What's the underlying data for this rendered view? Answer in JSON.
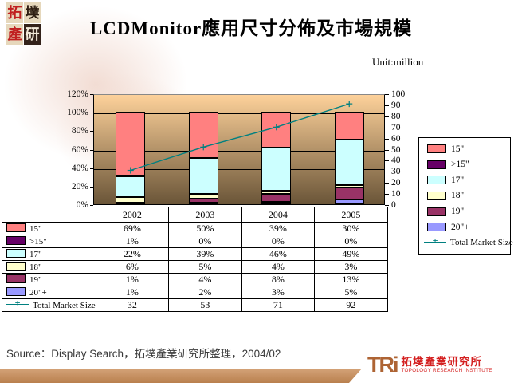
{
  "header": {
    "logo_chars": [
      "拓",
      "墣",
      "產",
      "研"
    ],
    "title": "LCDMonitor應用尺寸分佈及市場規模",
    "unit_label": "Unit:million"
  },
  "chart_data": {
    "type": "bar",
    "subtype": "100%-stacked-bars-with-line-overlay",
    "categories": [
      "2002",
      "2003",
      "2004",
      "2005"
    ],
    "series": [
      {
        "name": "15\"",
        "color": "#FF8080",
        "values_pct": [
          69,
          50,
          39,
          30
        ]
      },
      {
        "name": ">15\"",
        "color": "#660066",
        "values_pct": [
          1,
          0,
          0,
          0
        ]
      },
      {
        "name": "17\"",
        "color": "#CCFFFF",
        "values_pct": [
          22,
          39,
          46,
          49
        ]
      },
      {
        "name": "18\"",
        "color": "#FFFFCC",
        "values_pct": [
          6,
          5,
          4,
          3
        ]
      },
      {
        "name": "19\"",
        "color": "#993366",
        "values_pct": [
          1,
          4,
          8,
          13
        ]
      },
      {
        "name": "20\"+",
        "color": "#9999FF",
        "values_pct": [
          1,
          2,
          3,
          5
        ]
      }
    ],
    "stack_order_bottom_to_top": [
      "20\"+",
      "19\"",
      "18\"",
      "17\"",
      ">15\"",
      "15\""
    ],
    "line_series": {
      "name": "Total Market Size",
      "color": "#008080",
      "marker": "plus",
      "values": [
        32,
        53,
        71,
        92
      ]
    },
    "left_axis": {
      "min": 0,
      "max": 120,
      "step": 20,
      "tick_labels": [
        "0%",
        "20%",
        "40%",
        "60%",
        "80%",
        "100%",
        "120%"
      ]
    },
    "right_axis": {
      "min": 0,
      "max": 100,
      "step": 10,
      "tick_labels": [
        "0",
        "10",
        "20",
        "30",
        "40",
        "50",
        "60",
        "70",
        "80",
        "90",
        "100"
      ]
    },
    "legend_position": "right",
    "grid": "horizontal-major",
    "plot_gradient": {
      "top": "#FDD19A",
      "bottom": "#6A5538"
    }
  },
  "table": {
    "row_labels": [
      "15\"",
      ">15\"",
      "17\"",
      "18\"",
      "19\"",
      "20\"+",
      "Total Market Size"
    ],
    "rows": [
      [
        "69%",
        "50%",
        "39%",
        "30%"
      ],
      [
        "1%",
        "0%",
        "0%",
        "0%"
      ],
      [
        "22%",
        "39%",
        "46%",
        "49%"
      ],
      [
        "6%",
        "5%",
        "4%",
        "3%"
      ],
      [
        "1%",
        "4%",
        "8%",
        "13%"
      ],
      [
        "1%",
        "2%",
        "3%",
        "5%"
      ],
      [
        "32",
        "53",
        "71",
        "92"
      ]
    ]
  },
  "footer": {
    "source": "Source：Display Search，拓墣產業研究所整理，2004/02",
    "logo_tri": "TRi",
    "logo_cn": "拓墣產業研究所",
    "logo_en": "TOPOLOGY RESEARCH INSTITUTE"
  }
}
